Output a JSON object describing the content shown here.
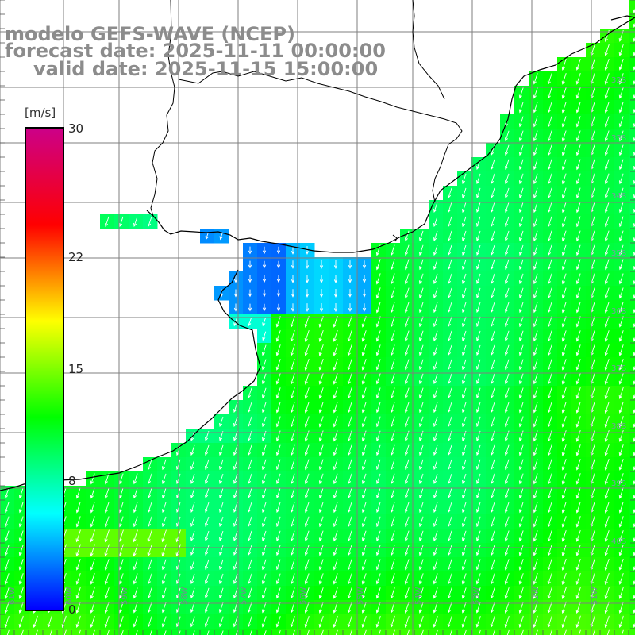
{
  "title": {
    "model": "modelo GEFS-WAVE (NCEP)",
    "forecast": "forecast date: 2025-11-11 00:00:00",
    "valid": "valid date: 2025-11-15 15:00:00"
  },
  "colorbar": {
    "unit": "[m/s]",
    "ticks": [
      "30",
      "22",
      "15",
      "8",
      "0"
    ],
    "tick_values": [
      30,
      22,
      15,
      8,
      0
    ],
    "range": [
      0,
      30
    ],
    "colors": [
      "#0000ff",
      "#00ffff",
      "#00ff00",
      "#ffff00",
      "#ff0000",
      "#cc0088"
    ]
  },
  "map": {
    "latitude_labels": [
      "32S",
      "33S",
      "34S",
      "35S",
      "36S",
      "37S",
      "38S",
      "39S",
      "40S"
    ],
    "longitude_labels": [
      "61W",
      "60W",
      "59W",
      "58W",
      "57W",
      "56W",
      "55W",
      "54W",
      "53W",
      "52W",
      "51W"
    ],
    "wind_direction": "south-southwest",
    "colors": {
      "land": "#ffffff",
      "grid": "#7f7f7f",
      "coast": "#000000",
      "arrows": "#ffffff"
    }
  }
}
